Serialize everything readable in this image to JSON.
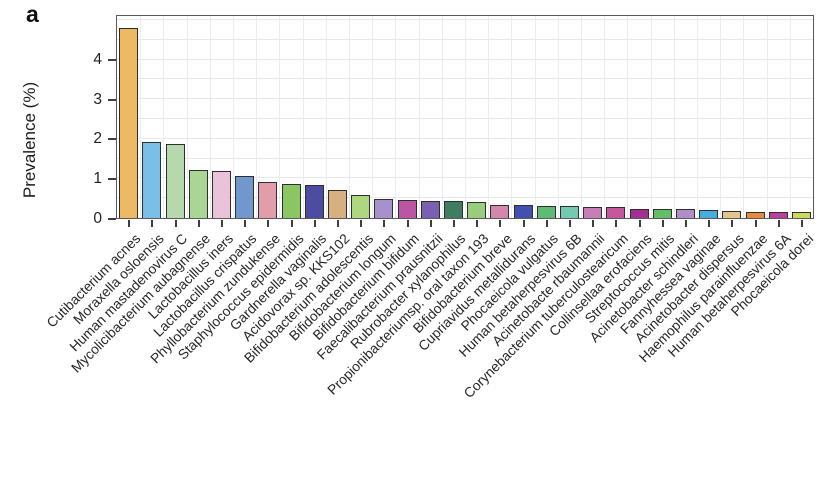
{
  "panel_label": "a",
  "chart_data": {
    "type": "bar",
    "title": "",
    "xlabel": "",
    "ylabel": "Prevalence (%)",
    "ylim": [
      0,
      5.1
    ],
    "yticks": [
      0,
      1,
      2,
      3,
      4
    ],
    "grid": {
      "horizontal_step": 0.5,
      "vertical": "category-boundaries",
      "color": "#e8e8e8"
    },
    "legend_position": "none",
    "bar_border_color": "#2e2e2e",
    "axis_border_color": "#59595b",
    "categories": [
      "Cutibacterium acnes",
      "Moraxella osloensis",
      "Human mastadenovirus C",
      "Mycolicibacterium aubagnense",
      "Lactobacillus iners",
      "Lactobacillus crispatus",
      "Phyllobacterium zundukense",
      "Staphylococcus epidermidis",
      "Gardnerella vaginalis",
      "Acidovorax sp. KKS102",
      "Bifidobacterium adolescentis",
      "Bifidobacterium longum",
      "Bifidobacterium bifidum",
      "Faecalibacterium prausnitzii",
      "Rubrobacter xylanophilus",
      "Propionibacteriumsp. oral taxon 193",
      "Bifidobacterium breve",
      "Cupriavidus metallidurans",
      "Phocaeicola vulgatus",
      "Human betaherpesvirus 6B",
      "Acinetobacte rbaumannii",
      "Corynebacterium tuberculostearicum",
      "Collinsellaa erofaciens",
      "Streptococcus mitis",
      "Acinetobacter schindleri",
      "Fannyhessea vaginae",
      "Acinetobacter dispersus",
      "Haemophilus parainfluenzae",
      "Human betaherpesvirus 6A",
      "Phocaeicola dorei"
    ],
    "values": [
      4.8,
      1.92,
      1.87,
      1.21,
      1.18,
      1.05,
      0.92,
      0.85,
      0.83,
      0.71,
      0.58,
      0.48,
      0.46,
      0.44,
      0.43,
      0.41,
      0.34,
      0.32,
      0.31,
      0.3,
      0.29,
      0.27,
      0.24,
      0.24,
      0.23,
      0.2,
      0.17,
      0.16,
      0.16,
      0.15
    ],
    "bar_colors": [
      "#edb964",
      "#79bfe8",
      "#b6d8ad",
      "#a9d595",
      "#eac3db",
      "#7098cd",
      "#e29daa",
      "#8ac662",
      "#4c4da0",
      "#d7af81",
      "#aed87f",
      "#a791cd",
      "#bb55a4",
      "#7b5fb2",
      "#3e7d60",
      "#98cd7d",
      "#d586ad",
      "#4150ae",
      "#5dba77",
      "#72cab2",
      "#c77eb8",
      "#c4579e",
      "#a52f90",
      "#64bd69",
      "#b18cc9",
      "#44aede",
      "#e2c48c",
      "#e58a3e",
      "#bc3f9a",
      "#ccd95b"
    ]
  }
}
